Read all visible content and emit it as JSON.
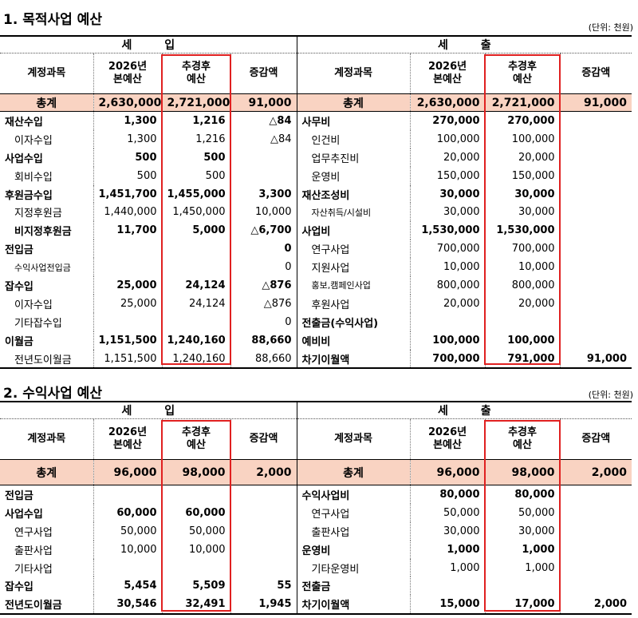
{
  "section1": {
    "title": "1. 목적사업 예산",
    "unit": "(단위: 천원)",
    "income_label": "세 입",
    "expense_label": "세 출",
    "headers": {
      "account": "계정과목",
      "base_line1": "2026년",
      "base_line2": "본예산",
      "rev_line1": "추경후",
      "rev_line2": "예산",
      "diff": "증감액"
    },
    "total": {
      "label": "총계",
      "base": "2,630,000",
      "rev": "2,721,000",
      "diff": "91,000",
      "e_label": "총계",
      "e_base": "2,630,000",
      "e_rev": "2,721,000",
      "e_diff": "91,000"
    },
    "rows": [
      {
        "i": "재산수입",
        "ib": "1,300",
        "ir": "1,216",
        "id": "△84",
        "e": "사무비",
        "eb": "270,000",
        "er": "270,000",
        "ed": ""
      },
      {
        "i": "이자수입",
        "ib": "1,300",
        "ir": "1,216",
        "id": "△84",
        "e": "인건비",
        "eb": "100,000",
        "er": "100,000",
        "ed": ""
      },
      {
        "i": "사업수입",
        "ib": "500",
        "ir": "500",
        "id": "",
        "e": "업무추진비",
        "eb": "20,000",
        "er": "20,000",
        "ed": ""
      },
      {
        "i": "회비수입",
        "ib": "500",
        "ir": "500",
        "id": "",
        "e": "운영비",
        "eb": "150,000",
        "er": "150,000",
        "ed": ""
      },
      {
        "i": "후원금수입",
        "ib": "1,451,700",
        "ir": "1,455,000",
        "id": "3,300",
        "e": "재산조성비",
        "eb": "30,000",
        "er": "30,000",
        "ed": ""
      },
      {
        "i": "지정후원금",
        "ib": "1,440,000",
        "ir": "1,450,000",
        "id": "10,000",
        "e": "자산취득/시설비",
        "eb": "30,000",
        "er": "30,000",
        "ed": ""
      },
      {
        "i": "비지정후원금",
        "ib": "11,700",
        "ir": "5,000",
        "id": "△6,700",
        "e": "사업비",
        "eb": "1,530,000",
        "er": "1,530,000",
        "ed": ""
      },
      {
        "i": "전입금",
        "ib": "",
        "ir": "",
        "id": "0",
        "e": "연구사업",
        "eb": "700,000",
        "er": "700,000",
        "ed": ""
      },
      {
        "i": "수익사업전입금",
        "ib": "",
        "ir": "",
        "id": "0",
        "e": "지원사업",
        "eb": "10,000",
        "er": "10,000",
        "ed": ""
      },
      {
        "i": "잡수입",
        "ib": "25,000",
        "ir": "24,124",
        "id": "△876",
        "e": "홍보,캠페인사업",
        "eb": "800,000",
        "er": "800,000",
        "ed": ""
      },
      {
        "i": "이자수입",
        "ib": "25,000",
        "ir": "24,124",
        "id": "△876",
        "e": "후원사업",
        "eb": "20,000",
        "er": "20,000",
        "ed": ""
      },
      {
        "i": "기타잡수입",
        "ib": "",
        "ir": "",
        "id": "0",
        "e": "전출금(수익사업)",
        "eb": "",
        "er": "",
        "ed": ""
      },
      {
        "i": "이월금",
        "ib": "1,151,500",
        "ir": "1,240,160",
        "id": "88,660",
        "e": "예비비",
        "eb": "100,000",
        "er": "100,000",
        "ed": ""
      },
      {
        "i": "전년도이월금",
        "ib": "1,151,500",
        "ir": "1,240,160",
        "id": "88,660",
        "e": "차기이월액",
        "eb": "700,000",
        "er": "791,000",
        "ed": "91,000"
      }
    ]
  },
  "section2": {
    "title": "2. 수익사업 예산",
    "unit": "(단위: 천원)",
    "income_label": "세 입",
    "expense_label": "세 출",
    "headers": {
      "account": "계정과목",
      "base_line1": "2026년",
      "base_line2": "본예산",
      "rev_line1": "추경후",
      "rev_line2": "예산",
      "diff": "증감액"
    },
    "total": {
      "label": "총계",
      "base": "96,000",
      "rev": "98,000",
      "diff": "2,000",
      "e_label": "총계",
      "e_base": "96,000",
      "e_rev": "98,000",
      "e_diff": "2,000"
    },
    "rows": [
      {
        "i": "전입금",
        "ib": "",
        "ir": "",
        "id": "",
        "e": "수익사업비",
        "eb": "80,000",
        "er": "80,000",
        "ed": ""
      },
      {
        "i": "사업수입",
        "ib": "60,000",
        "ir": "60,000",
        "id": "",
        "e": "연구사업",
        "eb": "50,000",
        "er": "50,000",
        "ed": ""
      },
      {
        "i": "연구사업",
        "ib": "50,000",
        "ir": "50,000",
        "id": "",
        "e": "출판사업",
        "eb": "30,000",
        "er": "30,000",
        "ed": ""
      },
      {
        "i": "출판사업",
        "ib": "10,000",
        "ir": "10,000",
        "id": "",
        "e": "운영비",
        "eb": "1,000",
        "er": "1,000",
        "ed": ""
      },
      {
        "i": "기타사업",
        "ib": "",
        "ir": "",
        "id": "",
        "e": "기타운영비",
        "eb": "1,000",
        "er": "1,000",
        "ed": ""
      },
      {
        "i": "잡수입",
        "ib": "5,454",
        "ir": "5,509",
        "id": "55",
        "e": "전출금",
        "eb": "",
        "er": "",
        "ed": ""
      },
      {
        "i": "전년도이월금",
        "ib": "30,546",
        "ir": "32,491",
        "id": "1,945",
        "e": "차기이월액",
        "eb": "15,000",
        "er": "17,000",
        "ed": "2,000"
      }
    ]
  }
}
